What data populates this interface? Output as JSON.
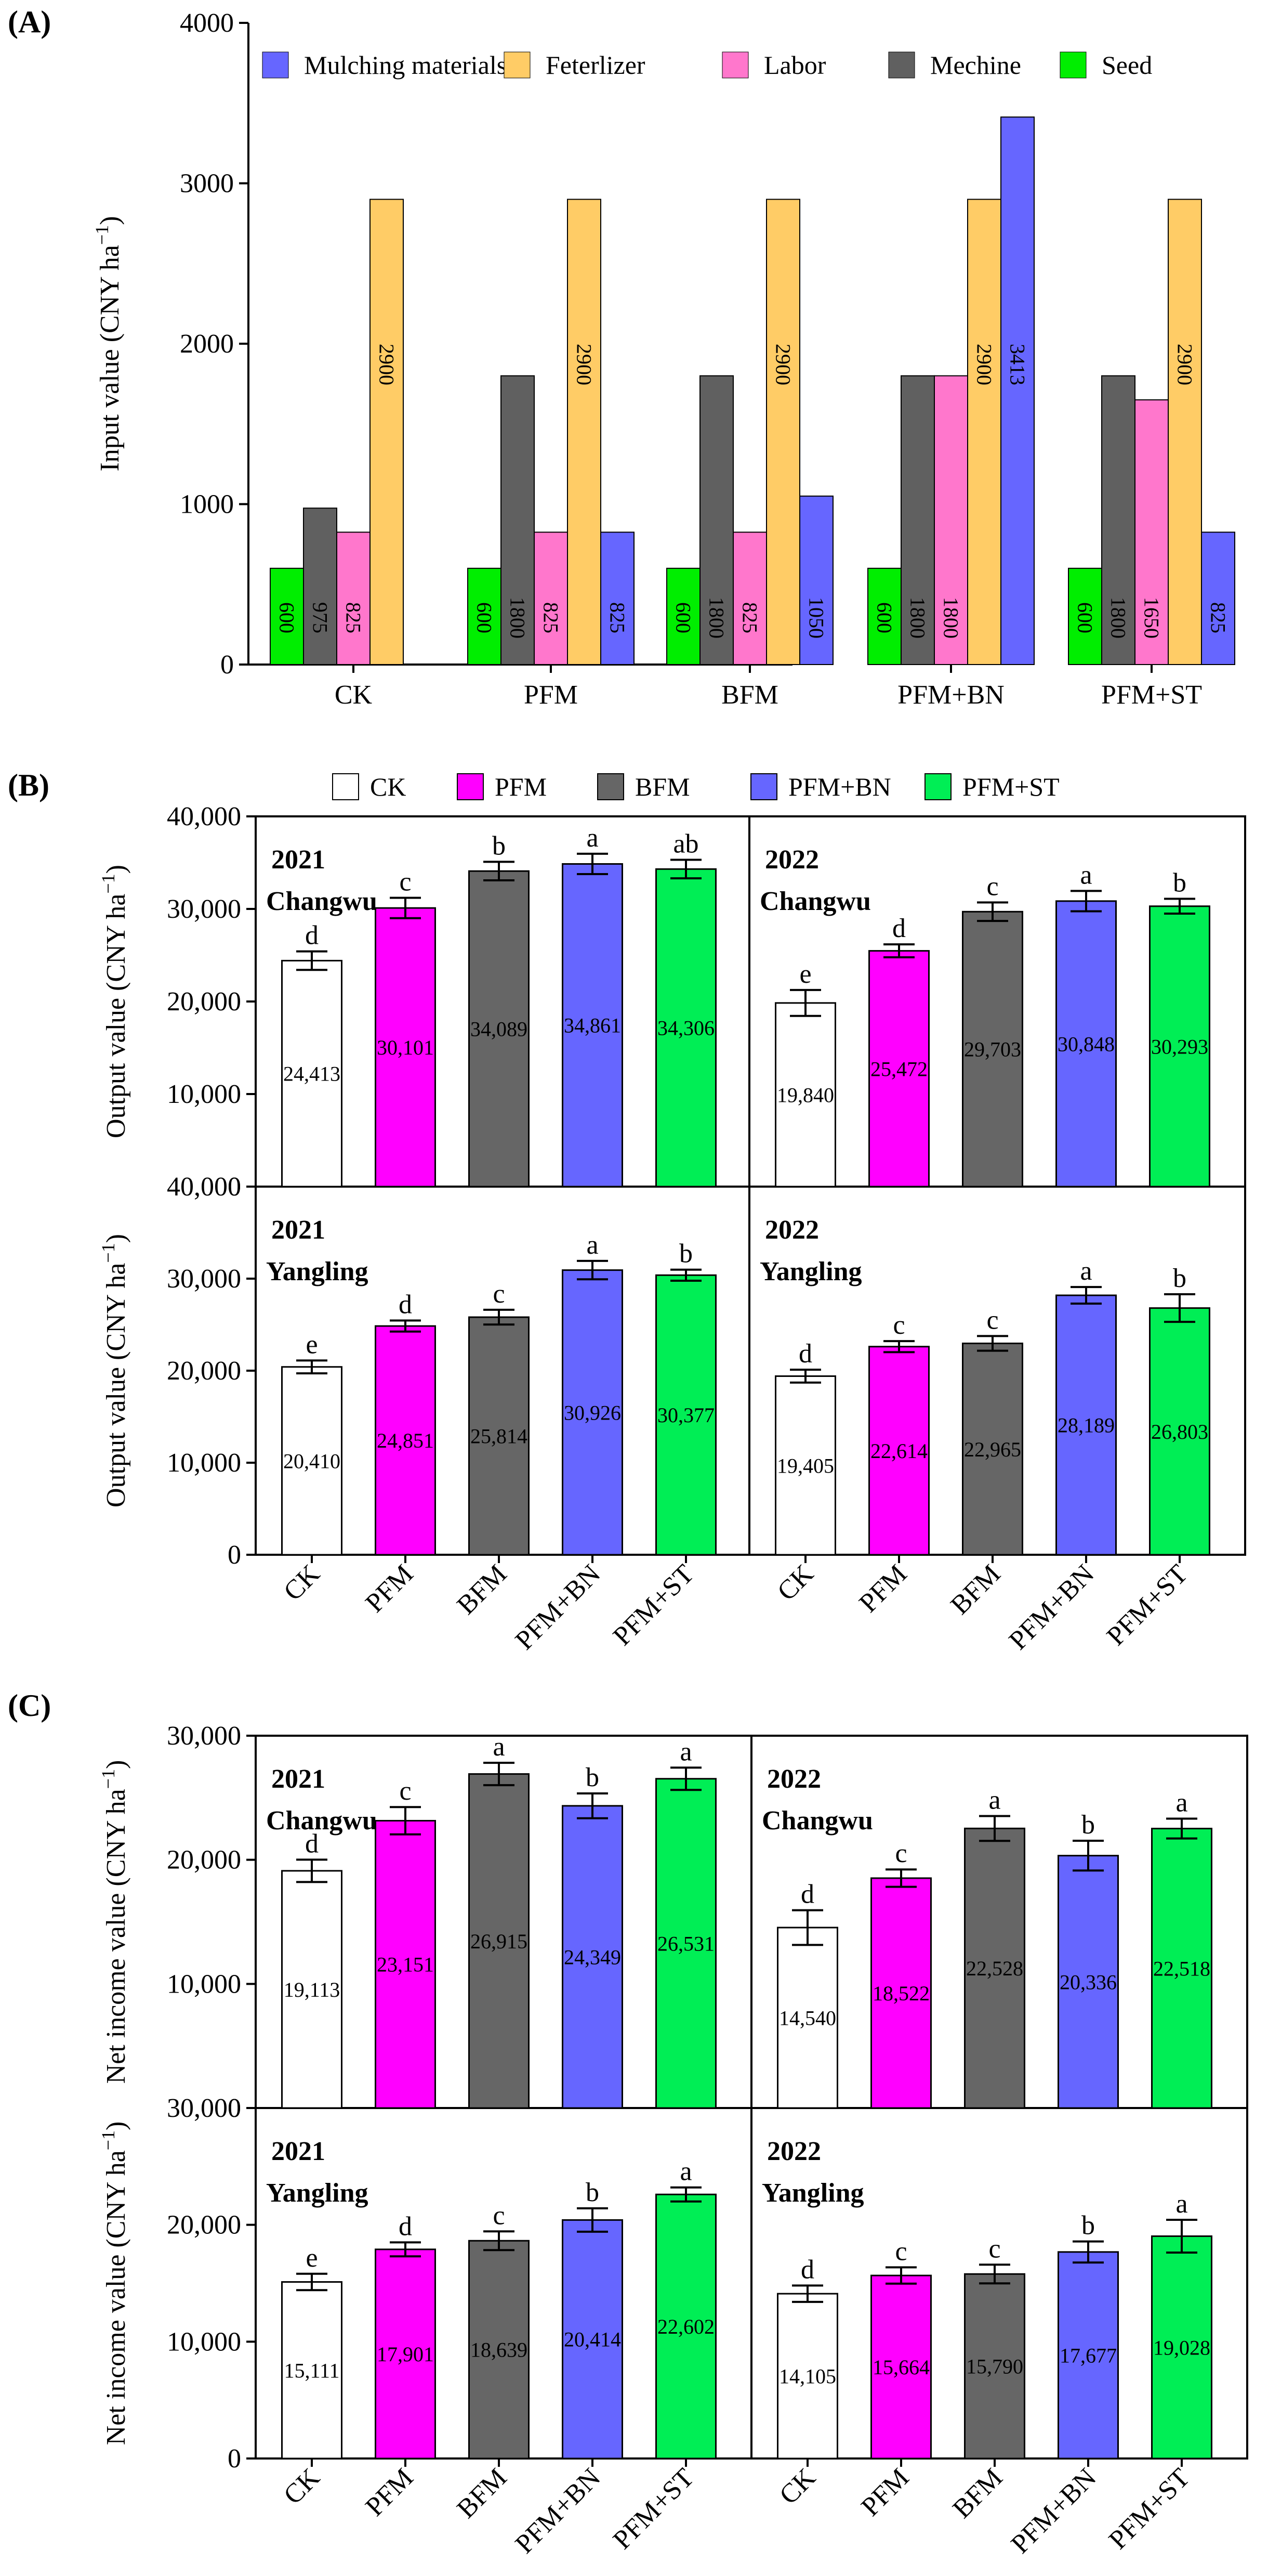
{
  "colors": {
    "CK": "#ffffff",
    "PFM": "#ff00ff",
    "BFM": "#666666",
    "PFM+BN": "#6666ff",
    "PFM+ST": "#00ee55",
    "Mulching materials": "#6666ff",
    "Feterlizer": "#ffcc66",
    "Labor": "#ff77cc",
    "Mechine": "#606060",
    "Seed": "#00ee00"
  },
  "chart_data": [
    {
      "id": "A",
      "panel_label": "(A)",
      "type": "bar",
      "ylabel": "Input value (CNY ha",
      "ylabel_sup": "−1",
      "ylabel_close": ")",
      "ylim": [
        0,
        4000
      ],
      "yticks": [
        "0",
        "1000",
        "2000",
        "3000",
        "4000"
      ],
      "categories": [
        "CK",
        "PFM",
        "BFM",
        "PFM+BN",
        "PFM+ST"
      ],
      "legend": [
        "Mulching materials",
        "Feterlizer",
        "Labor",
        "Mechine",
        "Seed"
      ],
      "groups": [
        {
          "category": "CK",
          "bars": [
            {
              "series": "Seed",
              "value": 600,
              "label": "600"
            },
            {
              "series": "Mechine",
              "value": 975,
              "label": "975"
            },
            {
              "series": "Labor",
              "value": 825,
              "label": "825"
            },
            {
              "series": "Feterlizer",
              "value": 2900,
              "label": "2900"
            }
          ]
        },
        {
          "category": "PFM",
          "bars": [
            {
              "series": "Seed",
              "value": 600,
              "label": "600"
            },
            {
              "series": "Mechine",
              "value": 1800,
              "label": "1800"
            },
            {
              "series": "Labor",
              "value": 825,
              "label": "825"
            },
            {
              "series": "Feterlizer",
              "value": 2900,
              "label": "2900"
            },
            {
              "series": "Mulching materials",
              "value": 825,
              "label": "825"
            }
          ]
        },
        {
          "category": "BFM",
          "bars": [
            {
              "series": "Seed",
              "value": 600,
              "label": "600"
            },
            {
              "series": "Mechine",
              "value": 1800,
              "label": "1800"
            },
            {
              "series": "Labor",
              "value": 825,
              "label": "825"
            },
            {
              "series": "Feterlizer",
              "value": 2900,
              "label": "2900"
            },
            {
              "series": "Mulching materials",
              "value": 1050,
              "label": "1050"
            }
          ]
        },
        {
          "category": "PFM+BN",
          "bars": [
            {
              "series": "Seed",
              "value": 600,
              "label": "600"
            },
            {
              "series": "Mechine",
              "value": 1800,
              "label": "1800"
            },
            {
              "series": "Labor",
              "value": 1800,
              "label": "1800"
            },
            {
              "series": "Feterlizer",
              "value": 2900,
              "label": "2900"
            },
            {
              "series": "Mulching materials",
              "value": 3413,
              "label": "3413"
            }
          ]
        },
        {
          "category": "PFM+ST",
          "bars": [
            {
              "series": "Seed",
              "value": 600,
              "label": "600"
            },
            {
              "series": "Mechine",
              "value": 1800,
              "label": "1800"
            },
            {
              "series": "Labor",
              "value": 1650,
              "label": "1650"
            },
            {
              "series": "Feterlizer",
              "value": 2900,
              "label": "2900"
            },
            {
              "series": "Mulching materials",
              "value": 825,
              "label": "825"
            }
          ]
        }
      ]
    },
    {
      "id": "B",
      "panel_label": "(B)",
      "type": "bar",
      "ylabel": "Output value (CNY ha",
      "ylabel_sup": "−1",
      "ylabel_close": ")",
      "ylim": [
        0,
        40000
      ],
      "yticks": [
        "0",
        "10,000",
        "20,000",
        "30,000",
        "40,000"
      ],
      "categories": [
        "CK",
        "PFM",
        "BFM",
        "PFM+BN",
        "PFM+ST"
      ],
      "legend": [
        "CK",
        "PFM",
        "BFM",
        "PFM+BN",
        "PFM+ST"
      ],
      "subplots": [
        {
          "year": "2021",
          "site": "Changwu",
          "values": [
            24413,
            30101,
            34089,
            34861,
            34306
          ],
          "labels": [
            "24,413",
            "30,101",
            "34,089",
            "34,861",
            "34,306"
          ],
          "errors": [
            1000,
            1100,
            1000,
            1100,
            1000
          ],
          "letters": [
            "d",
            "c",
            "b",
            "a",
            "ab"
          ]
        },
        {
          "year": "2022",
          "site": "Changwu",
          "values": [
            19840,
            25472,
            29703,
            30848,
            30293
          ],
          "labels": [
            "19,840",
            "25,472",
            "29,703",
            "30,848",
            "30,293"
          ],
          "errors": [
            1400,
            700,
            1000,
            1100,
            800
          ],
          "letters": [
            "e",
            "d",
            "c",
            "a",
            "b"
          ]
        },
        {
          "year": "2021",
          "site": "Yangling",
          "values": [
            20410,
            24851,
            25814,
            30926,
            30377
          ],
          "labels": [
            "20,410",
            "24,851",
            "25,814",
            "30,926",
            "30,377"
          ],
          "errors": [
            700,
            600,
            800,
            1000,
            600
          ],
          "letters": [
            "e",
            "d",
            "c",
            "a",
            "b"
          ]
        },
        {
          "year": "2022",
          "site": "Yangling",
          "values": [
            19405,
            22614,
            22965,
            28189,
            26803
          ],
          "labels": [
            "19,405",
            "22,614",
            "22,965",
            "28,189",
            "26,803"
          ],
          "errors": [
            700,
            600,
            800,
            900,
            1500
          ],
          "letters": [
            "d",
            "c",
            "c",
            "a",
            "b"
          ]
        }
      ]
    },
    {
      "id": "C",
      "panel_label": "(C)",
      "type": "bar",
      "ylabel": "Net income value (CNY ha",
      "ylabel_sup": "−1",
      "ylabel_close": ")",
      "ylim": [
        0,
        30000
      ],
      "yticks": [
        "0",
        "10,000",
        "20,000",
        "30,000"
      ],
      "categories": [
        "CK",
        "PFM",
        "BFM",
        "PFM+BN",
        "PFM+ST"
      ],
      "subplots": [
        {
          "year": "2021",
          "site": "Changwu",
          "values": [
            19113,
            23151,
            26915,
            24349,
            26531
          ],
          "labels": [
            "19,113",
            "23,151",
            "26,915",
            "24,349",
            "26,531"
          ],
          "errors": [
            900,
            1100,
            900,
            1000,
            900
          ],
          "letters": [
            "d",
            "c",
            "a",
            "b",
            "a"
          ]
        },
        {
          "year": "2022",
          "site": "Changwu",
          "values": [
            14540,
            18522,
            22528,
            20336,
            22518
          ],
          "labels": [
            "14,540",
            "18,522",
            "22,528",
            "20,336",
            "22,518"
          ],
          "errors": [
            1400,
            700,
            1000,
            1200,
            800
          ],
          "letters": [
            "d",
            "c",
            "a",
            "b",
            "a"
          ]
        },
        {
          "year": "2021",
          "site": "Yangling",
          "values": [
            15111,
            17901,
            18639,
            20414,
            22602
          ],
          "labels": [
            "15,111",
            "17,901",
            "18,639",
            "20,414",
            "22,602"
          ],
          "errors": [
            700,
            600,
            800,
            1000,
            600
          ],
          "letters": [
            "e",
            "d",
            "c",
            "b",
            "a"
          ]
        },
        {
          "year": "2022",
          "site": "Yangling",
          "values": [
            14105,
            15664,
            15790,
            17677,
            19028
          ],
          "labels": [
            "14,105",
            "15,664",
            "15,790",
            "17,677",
            "19,028"
          ],
          "errors": [
            700,
            700,
            800,
            900,
            1400
          ],
          "letters": [
            "d",
            "c",
            "c",
            "b",
            "a"
          ]
        }
      ]
    }
  ]
}
